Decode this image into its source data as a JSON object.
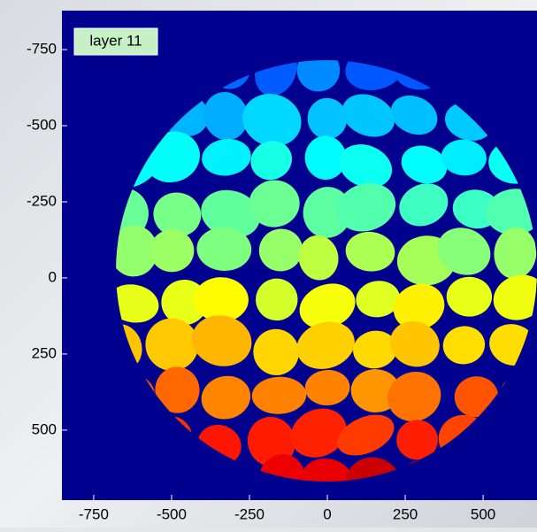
{
  "chart_data": {
    "type": "image",
    "annotation": "layer 11",
    "xlim": [
      -852,
      673
    ],
    "ylim": [
      -878,
      730
    ],
    "xticks": [
      -750,
      -500,
      -250,
      0,
      250,
      500
    ],
    "yticks": [
      -750,
      -500,
      -250,
      0,
      250,
      500
    ],
    "y_reversed": true
  }
}
